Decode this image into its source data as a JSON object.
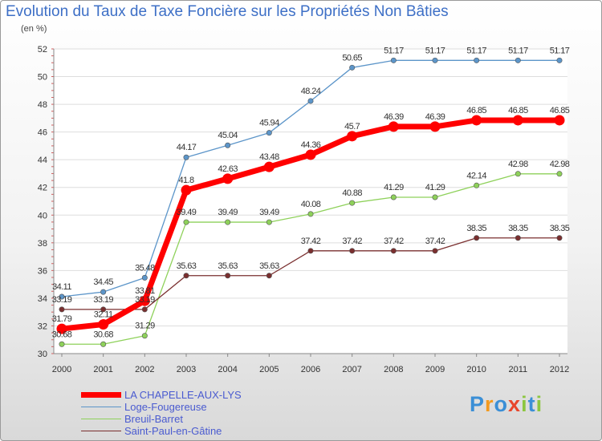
{
  "chart_data": {
    "type": "line",
    "title": "Evolution du Taux de Taxe Foncière sur les Propriétés Non Bâties",
    "unit_label": "(en %)",
    "categories": [
      "2000",
      "2001",
      "2002",
      "2003",
      "2004",
      "2005",
      "2006",
      "2007",
      "2008",
      "2009",
      "2010",
      "2011",
      "2012"
    ],
    "ylim": [
      30,
      52
    ],
    "yticks": [
      30,
      32,
      34,
      36,
      38,
      40,
      42,
      44,
      46,
      48,
      50,
      52
    ],
    "series": [
      {
        "name": "Loge-Fougereuse",
        "color": "#5c95c9",
        "values": [
          34.11,
          34.45,
          35.48,
          44.17,
          45.04,
          45.94,
          48.24,
          50.65,
          51.17,
          51.17,
          51.17,
          51.17,
          51.17
        ],
        "labels": [
          "34.11",
          "34.45",
          "35.48",
          "44.17",
          "45.04",
          "45.94",
          "48.24",
          "50.65",
          "51.17",
          "51.17",
          "51.17",
          "51.17",
          "51.17"
        ]
      },
      {
        "name": "Breuil-Barret",
        "color": "#8ed15a",
        "values": [
          30.68,
          30.68,
          31.29,
          39.49,
          39.49,
          39.49,
          40.08,
          40.88,
          41.29,
          41.29,
          42.14,
          42.98,
          42.98
        ],
        "labels": [
          "30.68",
          "30.68",
          "31.29",
          "39.49",
          "39.49",
          "39.49",
          "40.08",
          "40.88",
          "41.29",
          "41.29",
          "42.14",
          "42.98",
          "42.98"
        ]
      },
      {
        "name": "Saint-Paul-en-Gâtine",
        "color": "#7a2f2f",
        "values": [
          33.19,
          33.19,
          33.19,
          35.63,
          35.63,
          35.63,
          37.42,
          37.42,
          37.42,
          37.42,
          38.35,
          38.35,
          38.35
        ],
        "labels": [
          "33.19",
          "33.19",
          "33.19",
          "35.63",
          "35.63",
          "35.63",
          "37.42",
          "37.42",
          "37.42",
          "37.42",
          "38.35",
          "38.35",
          "38.35"
        ]
      },
      {
        "name": "LA CHAPELLE-AUX-LYS",
        "color": "#ff0000",
        "values": [
          31.79,
          32.11,
          33.81,
          41.8,
          42.63,
          43.48,
          44.36,
          45.7,
          46.39,
          46.39,
          46.85,
          46.85,
          46.85
        ],
        "labels": [
          "31.79",
          "32.11",
          "33.81",
          "41.8",
          "42.63",
          "43.48",
          "44.36",
          "45.7",
          "46.39",
          "46.39",
          "46.85",
          "46.85",
          "46.85"
        ]
      }
    ]
  },
  "legend": [
    {
      "name": "LA CHAPELLE-AUX-LYS",
      "color": "#ff0000"
    },
    {
      "name": "Loge-Fougereuse",
      "color": "#5c95c9"
    },
    {
      "name": "Breuil-Barret",
      "color": "#8ed15a"
    },
    {
      "name": "Saint-Paul-en-Gâtine",
      "color": "#7a2f2f"
    }
  ],
  "brand": {
    "letters": [
      "P",
      "r",
      "o",
      "x",
      "i",
      "t",
      "i"
    ],
    "colors": [
      "#3b8fd6",
      "#f39a1e",
      "#3b8fd6",
      "#e8462b",
      "#8cc63f",
      "#3b8fd6",
      "#8cc63f"
    ]
  }
}
